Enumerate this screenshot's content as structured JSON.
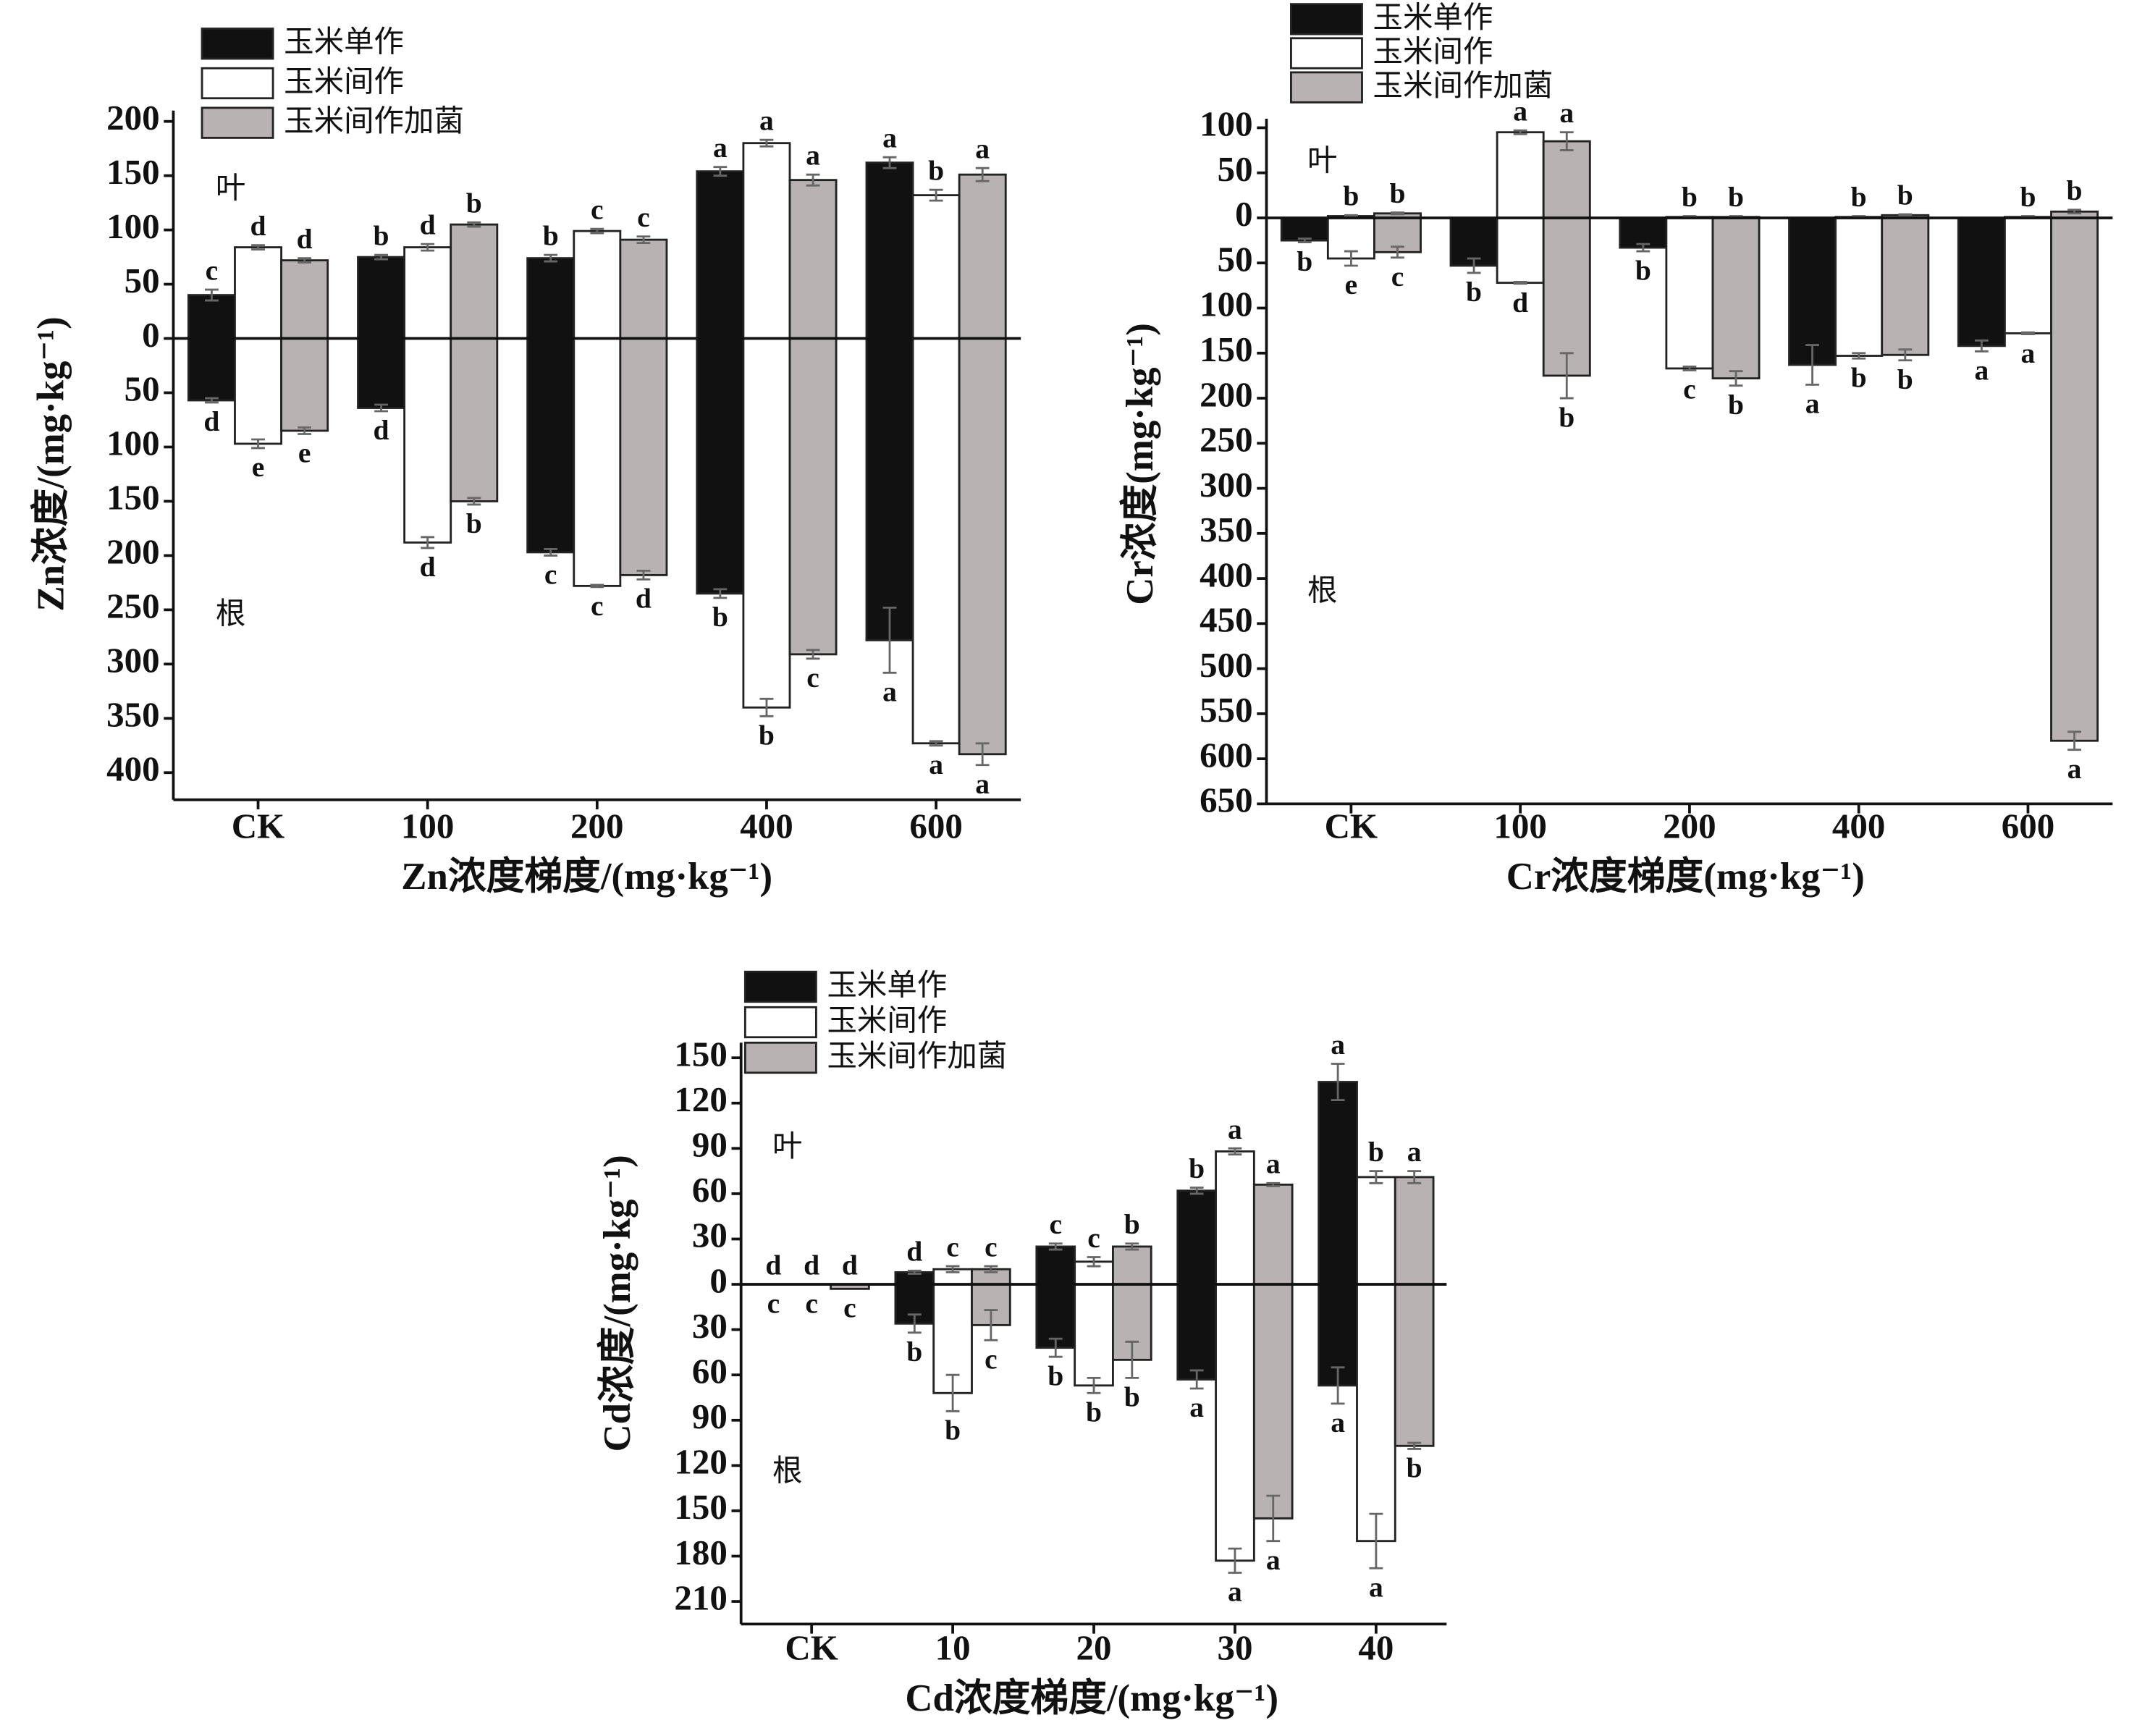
{
  "chart_data": [
    {
      "type": "bar",
      "xlabel": "Zn浓度梯度/(mg·kg⁻¹)",
      "ylabel": "Zn浓度/(mg·kg⁻¹)",
      "annotations": [
        "叶",
        "根"
      ],
      "categories": [
        "CK",
        "100",
        "200",
        "400",
        "600"
      ],
      "ylim": [
        -425,
        210
      ],
      "yticks": [
        200,
        150,
        100,
        50,
        0,
        {
          "value": -50,
          "label": "50"
        },
        {
          "value": -100,
          "label": "100"
        },
        {
          "value": -150,
          "label": "150"
        },
        {
          "value": -200,
          "label": "200"
        },
        {
          "value": -250,
          "label": "250"
        },
        {
          "value": -300,
          "label": "300"
        },
        {
          "value": -350,
          "label": "350"
        },
        {
          "value": -400,
          "label": "400"
        }
      ],
      "series": [
        {
          "name": "玉米单作",
          "color": "#111111",
          "values": [
            40,
            75,
            74,
            154,
            162
          ],
          "errors": [
            5,
            2,
            3,
            4,
            5
          ],
          "letters": [
            "c",
            "b",
            "b",
            "a",
            "a"
          ],
          "root_values": [
            -57,
            -64,
            -197,
            -235,
            -278
          ],
          "root_errors": [
            2,
            3,
            3,
            4,
            30
          ],
          "root_letters": [
            "d",
            "d",
            "c",
            "b",
            "a"
          ]
        },
        {
          "name": "玉米间作",
          "color": "#ffffff",
          "values": [
            84,
            84,
            99,
            180,
            132
          ],
          "errors": [
            2,
            3,
            2,
            3,
            5
          ],
          "letters": [
            "d",
            "d",
            "c",
            "a",
            "b"
          ],
          "root_values": [
            -97,
            -188,
            -228,
            -340,
            -373
          ],
          "root_errors": [
            4,
            5,
            1,
            8,
            2
          ],
          "root_letters": [
            "e",
            "d",
            "c",
            "b",
            "a"
          ]
        },
        {
          "name": "玉米间作加菌",
          "color": "#b8b2b2",
          "values": [
            72,
            105,
            91,
            146,
            151
          ],
          "errors": [
            2,
            2,
            3,
            5,
            6
          ],
          "letters": [
            "d",
            "b",
            "c",
            "a",
            "a"
          ],
          "root_values": [
            -85,
            -150,
            -218,
            -291,
            -383
          ],
          "root_errors": [
            3,
            3,
            4,
            4,
            10
          ],
          "root_letters": [
            "e",
            "b",
            "d",
            "c",
            "a"
          ]
        }
      ]
    },
    {
      "type": "bar",
      "xlabel": "Cr浓度梯度(mg·kg⁻¹)",
      "ylabel": "Cr浓度(mg·kg⁻¹)",
      "annotations": [
        "叶",
        "根"
      ],
      "categories": [
        "CK",
        "100",
        "200",
        "400",
        "600"
      ],
      "ylim": [
        -650,
        110
      ],
      "yticks": [
        100,
        50,
        0,
        {
          "value": -50,
          "label": "50"
        },
        {
          "value": -100,
          "label": "100"
        },
        {
          "value": -150,
          "label": "150"
        },
        {
          "value": -200,
          "label": "200"
        },
        {
          "value": -250,
          "label": "250"
        },
        {
          "value": -300,
          "label": "300"
        },
        {
          "value": -350,
          "label": "350"
        },
        {
          "value": -400,
          "label": "400"
        },
        {
          "value": -450,
          "label": "450"
        },
        {
          "value": -500,
          "label": "500"
        },
        {
          "value": -550,
          "label": "550"
        },
        {
          "value": -600,
          "label": "600"
        },
        {
          "value": -650,
          "label": "650"
        }
      ],
      "series": [
        {
          "name": "玉米单作",
          "color": "#111111",
          "values": [
            0,
            0,
            0,
            0,
            0
          ],
          "errors": [
            0,
            0,
            0,
            0,
            0
          ],
          "letters": [
            null,
            null,
            null,
            null,
            null
          ],
          "root_values": [
            -25,
            -53,
            -33,
            -163,
            -142
          ],
          "root_errors": [
            2,
            8,
            4,
            22,
            6
          ],
          "root_letters": [
            "b",
            "b",
            "b",
            "a",
            "a"
          ]
        },
        {
          "name": "玉米间作",
          "color": "#ffffff",
          "values": [
            2,
            95,
            1,
            1,
            1
          ],
          "errors": [
            1,
            2,
            1,
            1,
            1
          ],
          "letters": [
            "b",
            "a",
            "b",
            "b",
            "b"
          ],
          "root_values": [
            -45,
            -72,
            -167,
            -153,
            -128
          ],
          "root_errors": [
            8,
            1,
            2,
            3,
            1
          ],
          "root_letters": [
            "e",
            "d",
            "c",
            "b",
            "a"
          ]
        },
        {
          "name": "玉米间作加菌",
          "color": "#b8b2b2",
          "values": [
            5,
            85,
            1,
            3,
            7
          ],
          "errors": [
            1,
            10,
            1,
            1,
            2
          ],
          "letters": [
            "b",
            "a",
            "b",
            "b",
            "b"
          ],
          "root_values": [
            -38,
            -175,
            -178,
            -152,
            -580
          ],
          "root_errors": [
            6,
            25,
            8,
            6,
            10
          ],
          "root_letters": [
            "c",
            "b",
            "b",
            "b",
            "a"
          ]
        }
      ]
    },
    {
      "type": "bar",
      "xlabel": "Cd浓度梯度/(mg·kg⁻¹)",
      "ylabel": "Cd浓度/(mg·kg⁻¹)",
      "annotations": [
        "叶",
        "根"
      ],
      "categories": [
        "CK",
        "10",
        "20",
        "30",
        "40"
      ],
      "ylim": [
        -225,
        160
      ],
      "yticks": [
        150,
        120,
        90,
        60,
        30,
        0,
        {
          "value": -30,
          "label": "30"
        },
        {
          "value": -60,
          "label": "60"
        },
        {
          "value": -90,
          "label": "90"
        },
        {
          "value": -120,
          "label": "120"
        },
        {
          "value": -150,
          "label": "150"
        },
        {
          "value": -180,
          "label": "180"
        },
        {
          "value": -210,
          "label": "210"
        }
      ],
      "series": [
        {
          "name": "玉米单作",
          "color": "#111111",
          "values": [
            0,
            8,
            25,
            62,
            134
          ],
          "errors": [
            0,
            1,
            2,
            2,
            12
          ],
          "letters": [
            "d",
            "d",
            "c",
            "b",
            "a"
          ],
          "root_values": [
            0,
            -26,
            -42,
            -63,
            -67
          ],
          "root_errors": [
            0,
            6,
            6,
            6,
            12
          ],
          "root_letters": [
            "c",
            "b",
            "b",
            "a",
            "a"
          ]
        },
        {
          "name": "玉米间作",
          "color": "#ffffff",
          "values": [
            0,
            10,
            15,
            88,
            71
          ],
          "errors": [
            0,
            2,
            3,
            2,
            4
          ],
          "letters": [
            "d",
            "c",
            "c",
            "a",
            "b"
          ],
          "root_values": [
            0,
            -72,
            -67,
            -183,
            -170
          ],
          "root_errors": [
            0,
            12,
            5,
            8,
            18
          ],
          "root_letters": [
            "c",
            "b",
            "b",
            "a",
            "a"
          ]
        },
        {
          "name": "玉米间作加菌",
          "color": "#b8b2b2",
          "values": [
            0,
            10,
            25,
            66,
            71
          ],
          "errors": [
            0,
            2,
            2,
            1,
            4
          ],
          "letters": [
            "d",
            "c",
            "b",
            "a",
            "a"
          ],
          "root_values": [
            -3,
            -27,
            -50,
            -155,
            -107
          ],
          "root_errors": [
            0,
            10,
            12,
            15,
            2
          ],
          "root_letters": [
            "c",
            "c",
            "b",
            "a",
            "b"
          ]
        }
      ]
    }
  ]
}
